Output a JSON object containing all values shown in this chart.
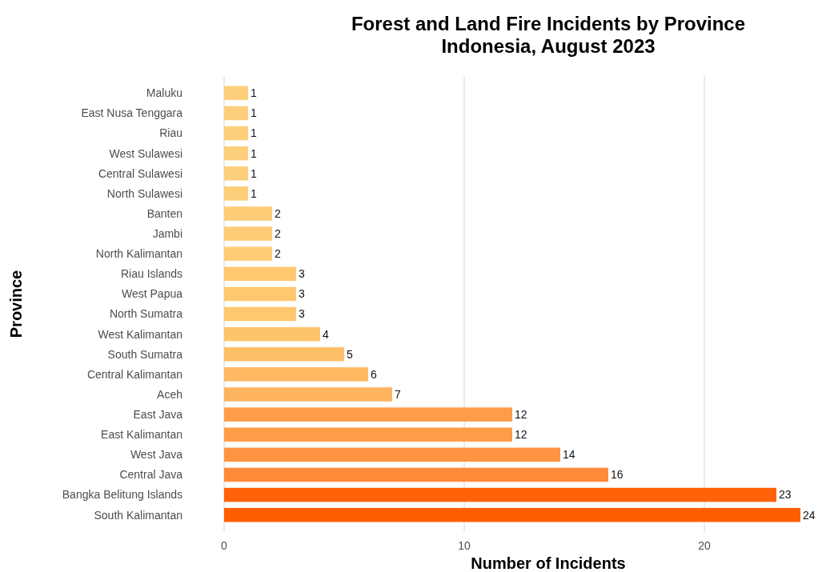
{
  "chart_data": {
    "type": "bar",
    "orientation": "horizontal",
    "title": "Forest and Land Fire Incidents by Province\nIndonesia, August 2023",
    "xlabel": "Number of Incidents",
    "ylabel": "Province",
    "categories": [
      "Maluku",
      "East Nusa Tenggara",
      "Riau",
      "West Sulawesi",
      "Central Sulawesi",
      "North Sulawesi",
      "Banten",
      "Jambi",
      "North Kalimantan",
      "Riau Islands",
      "West Papua",
      "North Sumatra",
      "West Kalimantan",
      "South Sumatra",
      "Central Kalimantan",
      "Aceh",
      "East Java",
      "East Kalimantan",
      "West Java",
      "Central Java",
      "Bangka Belitung Islands",
      "South Kalimantan"
    ],
    "values": [
      1,
      1,
      1,
      1,
      1,
      1,
      2,
      2,
      2,
      3,
      3,
      3,
      4,
      5,
      6,
      7,
      12,
      12,
      14,
      16,
      23,
      24
    ],
    "colors": [
      "#fecf7b",
      "#fecf7b",
      "#fecf7b",
      "#fecf7b",
      "#fecf7b",
      "#fecf7b",
      "#fecc76",
      "#fecc76",
      "#fecc76",
      "#fec870",
      "#fec870",
      "#fec870",
      "#fec46c",
      "#febf68",
      "#feb962",
      "#feb45e",
      "#fe9c48",
      "#fe9c48",
      "#fe9442",
      "#fe8a3a",
      "#ff6208",
      "#ff5e00"
    ],
    "xlim": [
      0,
      24
    ],
    "xticks": [
      0,
      10,
      20
    ],
    "grid": "x",
    "data_labels": true
  }
}
